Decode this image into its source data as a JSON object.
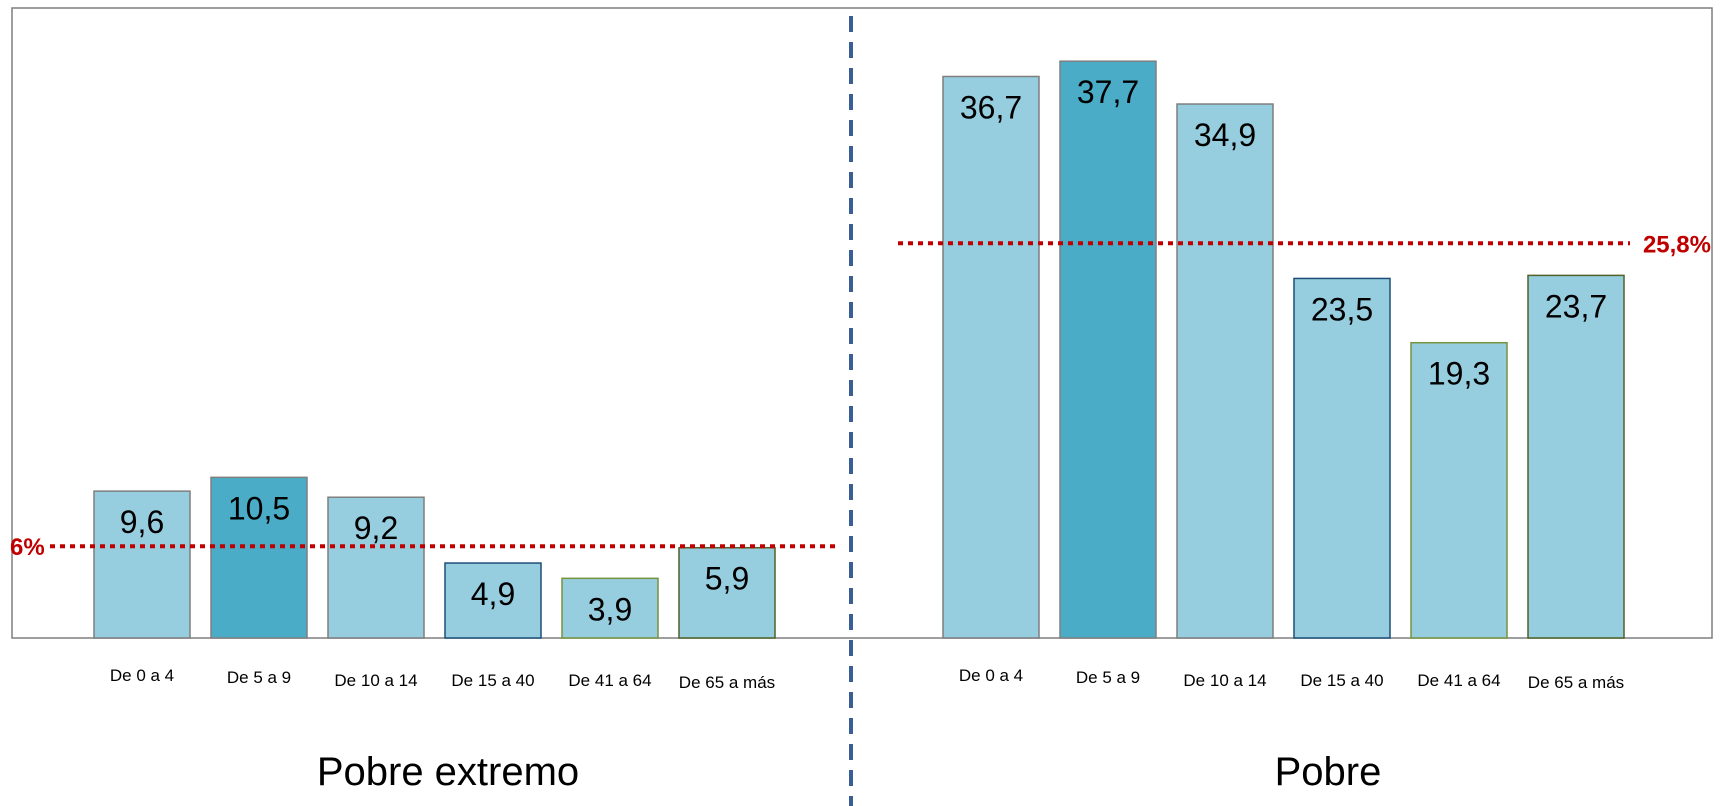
{
  "chart_data": {
    "type": "bar",
    "y_range": [
      0,
      40
    ],
    "grid": false,
    "colors": {
      "bar_light": "#96CDDF",
      "bar_dark": "#4AACC6",
      "reference_line": "#C00000",
      "divider": "#3A5F97",
      "frame": "#7F7F7F"
    },
    "panels": [
      {
        "title": "Pobre extremo",
        "categories": [
          "De 0 a 4",
          "De 5 a 9",
          "De 10 a 14",
          "De 15 a 40",
          "De 41 a 64",
          "De 65 a más"
        ],
        "values": [
          9.6,
          10.5,
          9.2,
          4.9,
          3.9,
          5.9
        ],
        "value_labels": [
          "9,6",
          "10,5",
          "9,2",
          "4,9",
          "3,9",
          "5,9"
        ],
        "highlight_index": 1,
        "reference_value": 6,
        "reference_label": "6%"
      },
      {
        "title": "Pobre",
        "categories": [
          "De 0 a 4",
          "De 5 a 9",
          "De 10 a 14",
          "De 15 a 40",
          "De 41 a 64",
          "De 65 a más"
        ],
        "values": [
          36.7,
          37.7,
          34.9,
          23.5,
          19.3,
          23.7
        ],
        "value_labels": [
          "36,7",
          "37,7",
          "34,9",
          "23,5",
          "19,3",
          "23,7"
        ],
        "highlight_index": 1,
        "reference_value": 25.8,
        "reference_label": "25,8%"
      }
    ]
  }
}
